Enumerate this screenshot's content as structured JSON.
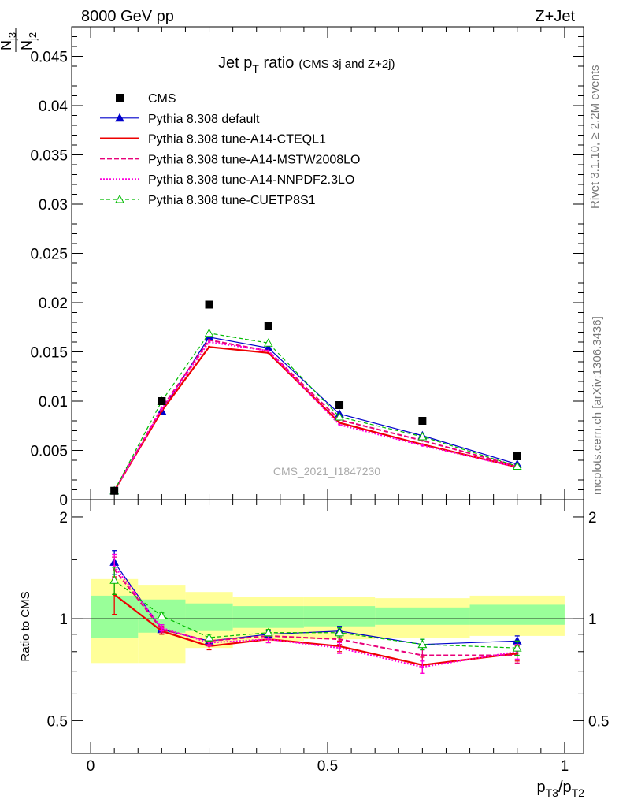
{
  "header": {
    "left": "8000 GeV pp",
    "right": "Z+Jet"
  },
  "side_labels": {
    "rivet": "Rivet 3.1.10, ≥ 2.2M events",
    "mcplots": "mcplots.cern.ch [arXiv:1306.3436]"
  },
  "watermark": "CMS_2021_I1847230",
  "chart_data": [
    {
      "type": "line",
      "title": "Jet p_T ratio",
      "title_parts": {
        "main": "Jet p",
        "sub": "T",
        "rest": " ratio",
        "note": "(CMS 3j and Z+2j)"
      },
      "ylabel_parts": {
        "num_main": "N",
        "num_sub": "j3",
        "den_main": "N",
        "den_sub": "j2"
      },
      "xlim": [
        -0.04,
        1.04
      ],
      "ylim": [
        0,
        0.048
      ],
      "yticks": [
        {
          "v": 0,
          "label": "0"
        },
        {
          "v": 0.005,
          "label": "0.005"
        },
        {
          "v": 0.01,
          "label": "0.01"
        },
        {
          "v": 0.015,
          "label": "0.015"
        },
        {
          "v": 0.02,
          "label": "0.02"
        },
        {
          "v": 0.025,
          "label": "0.025"
        },
        {
          "v": 0.03,
          "label": "0.03"
        },
        {
          "v": 0.035,
          "label": "0.035"
        },
        {
          "v": 0.04,
          "label": "0.04"
        },
        {
          "v": 0.045,
          "label": "0.045"
        }
      ],
      "x": [
        0.05,
        0.15,
        0.25,
        0.375,
        0.525,
        0.7,
        0.9
      ],
      "legend_position": "top-left",
      "data": {
        "name": "CMS",
        "color": "#000000",
        "values": [
          0.0009,
          0.01,
          0.0198,
          0.0176,
          0.0096,
          0.008,
          0.0044
        ]
      },
      "series": [
        {
          "name": "Pythia 8.308 default",
          "color": "#0000cc",
          "dash": "",
          "width": 1.2,
          "marker": "triangle-filled",
          "values": [
            0.0009,
            0.009,
            0.0165,
            0.0154,
            0.0087,
            0.0065,
            0.0036
          ]
        },
        {
          "name": "Pythia 8.308 tune-A14-CTEQL1",
          "color": "#ee0000",
          "dash": "",
          "width": 2.2,
          "marker": "none",
          "values": [
            0.0009,
            0.009,
            0.0155,
            0.0149,
            0.0078,
            0.0056,
            0.0033
          ]
        },
        {
          "name": "Pythia 8.308 tune-A14-MSTW2008LO",
          "color": "#e8007a",
          "dash": "6,3",
          "width": 2,
          "marker": "none",
          "values": [
            0.0009,
            0.0093,
            0.0162,
            0.0151,
            0.0081,
            0.006,
            0.0034
          ]
        },
        {
          "name": "Pythia 8.308 tune-A14-NNPDF2.3LO",
          "color": "#ff00dd",
          "dash": "2,2",
          "width": 2,
          "marker": "none",
          "values": [
            0.0009,
            0.0092,
            0.016,
            0.0151,
            0.0076,
            0.0055,
            0.0033
          ]
        },
        {
          "name": "Pythia 8.308 tune-CUETP8S1",
          "color": "#00bb00",
          "dash": "5,3",
          "width": 1.2,
          "marker": "triangle-open",
          "values": [
            0.0009,
            0.01,
            0.0169,
            0.0159,
            0.0084,
            0.0064,
            0.0034
          ]
        }
      ]
    },
    {
      "type": "line",
      "ylabel": "Ratio to CMS",
      "xlabel_parts": {
        "a": "p",
        "a_sub": "T3",
        "b": "/p",
        "b_sub": "T2"
      },
      "yscale": "log",
      "ylim": [
        0.4,
        2.25
      ],
      "xlim": [
        -0.04,
        1.04
      ],
      "yticks": [
        {
          "v": 0.5,
          "label": "0.5"
        },
        {
          "v": 1,
          "label": "1"
        },
        {
          "v": 2,
          "label": "2"
        }
      ],
      "xticks": [
        {
          "v": 0,
          "label": "0"
        },
        {
          "v": 0.5,
          "label": "0.5"
        },
        {
          "v": 1,
          "label": "1"
        }
      ],
      "x": [
        0.05,
        0.15,
        0.25,
        0.375,
        0.525,
        0.7,
        0.9
      ],
      "bands": [
        {
          "x0": 0,
          "x1": 0.1,
          "yellow": [
            0.74,
            1.31
          ],
          "green": [
            0.88,
            1.17
          ]
        },
        {
          "x0": 0.1,
          "x1": 0.2,
          "yellow": [
            0.74,
            1.26
          ],
          "green": [
            0.91,
            1.14
          ]
        },
        {
          "x0": 0.2,
          "x1": 0.3,
          "yellow": [
            0.82,
            1.2
          ],
          "green": [
            0.92,
            1.11
          ]
        },
        {
          "x0": 0.3,
          "x1": 0.45,
          "yellow": [
            0.86,
            1.16
          ],
          "green": [
            0.94,
            1.09
          ]
        },
        {
          "x0": 0.45,
          "x1": 0.6,
          "yellow": [
            0.87,
            1.16
          ],
          "green": [
            0.95,
            1.09
          ]
        },
        {
          "x0": 0.6,
          "x1": 0.8,
          "yellow": [
            0.88,
            1.15
          ],
          "green": [
            0.96,
            1.08
          ]
        },
        {
          "x0": 0.8,
          "x1": 1.0,
          "yellow": [
            0.89,
            1.17
          ],
          "green": [
            0.96,
            1.1
          ]
        }
      ],
      "series": [
        {
          "name": "Pythia 8.308 default",
          "values": [
            1.47,
            0.93,
            0.86,
            0.9,
            0.92,
            0.84,
            0.86
          ],
          "errors": [
            0.12,
            0.03,
            0.02,
            0.02,
            0.03,
            0.03,
            0.03
          ]
        },
        {
          "name": "Pythia 8.308 tune-A14-CTEQL1",
          "values": [
            1.18,
            0.92,
            0.83,
            0.87,
            0.83,
            0.73,
            0.79
          ],
          "errors": [
            0.15,
            0.02,
            0.02,
            0.02,
            0.03,
            0.04,
            0.04
          ]
        },
        {
          "name": "Pythia 8.308 tune-A14-MSTW2008LO",
          "values": [
            1.4,
            0.93,
            0.86,
            0.89,
            0.87,
            0.78,
            0.78
          ],
          "errors": [
            0.12,
            0.02,
            0.02,
            0.02,
            0.03,
            0.03,
            0.04
          ]
        },
        {
          "name": "Pythia 8.308 tune-A14-NNPDF2.3LO",
          "values": [
            1.43,
            0.94,
            0.85,
            0.87,
            0.82,
            0.72,
            0.8
          ],
          "errors": [
            0.12,
            0.02,
            0.02,
            0.02,
            0.03,
            0.03,
            0.04
          ]
        },
        {
          "name": "Pythia 8.308 tune-CUETP8S1",
          "values": [
            1.3,
            1.02,
            0.88,
            0.91,
            0.91,
            0.84,
            0.82
          ],
          "errors": [
            0.12,
            0.02,
            0.02,
            0.02,
            0.03,
            0.03,
            0.04
          ]
        }
      ]
    }
  ]
}
